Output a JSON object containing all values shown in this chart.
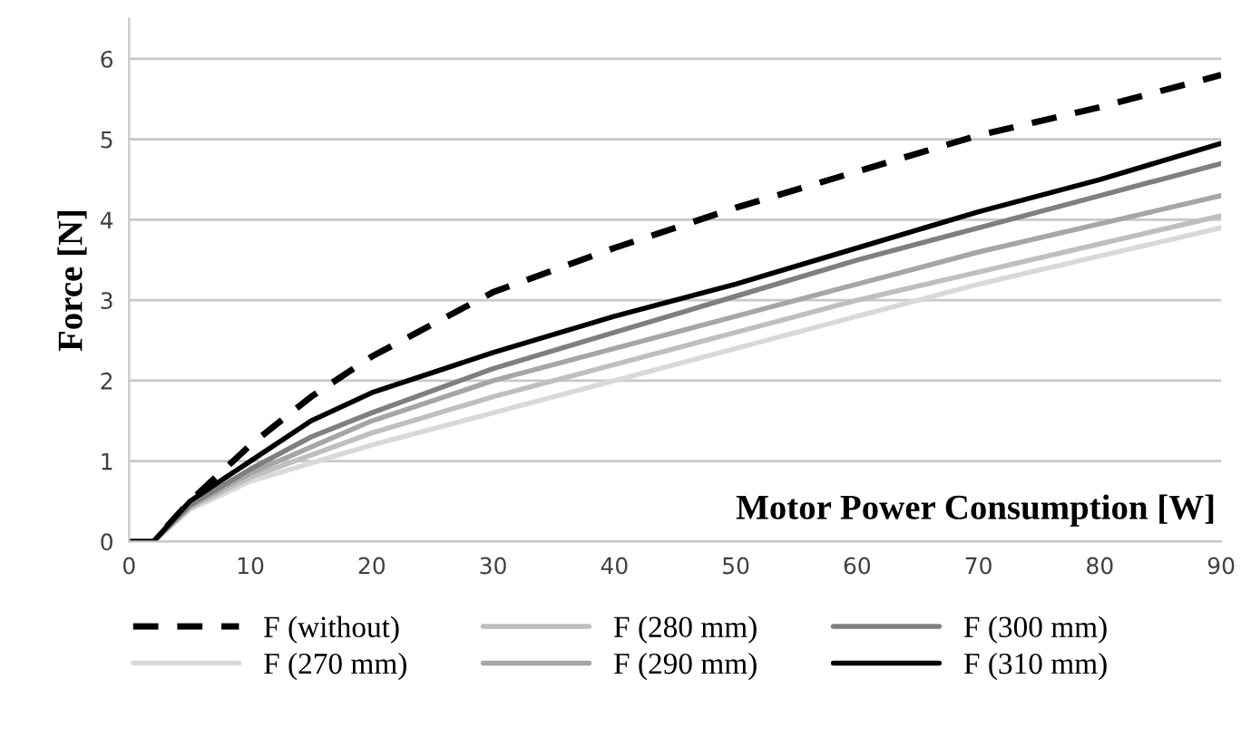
{
  "chart_data": {
    "type": "line",
    "xlabel": "Motor Power Consumption [W]",
    "ylabel": "Force [N]",
    "xlim": [
      0,
      90
    ],
    "xticks": [
      0,
      10,
      20,
      30,
      40,
      50,
      60,
      70,
      80,
      90
    ],
    "ylim": [
      0,
      6.5
    ],
    "yticks": [
      0,
      1,
      2,
      3,
      4,
      5,
      6
    ],
    "grid": "y",
    "legend": "bottom",
    "marker": "none",
    "series": [
      {
        "name": "F (without)",
        "color": "#000000",
        "line_style": "dashed",
        "x": [
          0,
          2,
          5,
          10,
          15,
          20,
          25,
          30,
          40,
          50,
          60,
          70,
          80,
          90
        ],
        "values": [
          0,
          0,
          0.5,
          1.2,
          1.8,
          2.3,
          2.7,
          3.1,
          3.65,
          4.15,
          4.6,
          5.05,
          5.4,
          5.8
        ]
      },
      {
        "name": "F (270 mm)",
        "color": "#d9d9d9",
        "line_style": "solid",
        "x": [
          0,
          2,
          5,
          10,
          20,
          30,
          40,
          50,
          60,
          70,
          80,
          90
        ],
        "values": [
          0,
          0,
          0.4,
          0.75,
          1.2,
          1.6,
          2.0,
          2.4,
          2.8,
          3.2,
          3.55,
          3.9
        ]
      },
      {
        "name": "F (280 mm)",
        "color": "#bfbfbf",
        "line_style": "solid",
        "x": [
          0,
          2,
          5,
          10,
          20,
          30,
          40,
          50,
          60,
          70,
          80,
          90
        ],
        "values": [
          0,
          0,
          0.42,
          0.8,
          1.35,
          1.8,
          2.2,
          2.6,
          3.0,
          3.35,
          3.7,
          4.05
        ]
      },
      {
        "name": "F (290 mm)",
        "color": "#a6a6a6",
        "line_style": "solid",
        "x": [
          0,
          2,
          5,
          10,
          20,
          30,
          40,
          50,
          60,
          70,
          80,
          90
        ],
        "values": [
          0,
          0,
          0.44,
          0.85,
          1.5,
          2.0,
          2.4,
          2.8,
          3.2,
          3.6,
          3.95,
          4.3
        ]
      },
      {
        "name": "F (300 mm)",
        "color": "#7f7f7f",
        "line_style": "solid",
        "x": [
          0,
          2,
          5,
          10,
          15,
          20,
          30,
          40,
          50,
          60,
          70,
          80,
          90
        ],
        "values": [
          0,
          0,
          0.45,
          0.9,
          1.3,
          1.6,
          2.15,
          2.6,
          3.05,
          3.5,
          3.9,
          4.3,
          4.7
        ]
      },
      {
        "name": "F (310 mm)",
        "color": "#000000",
        "line_style": "solid",
        "x": [
          0,
          2,
          5,
          10,
          15,
          20,
          30,
          40,
          50,
          60,
          70,
          80,
          90
        ],
        "values": [
          0,
          0,
          0.5,
          1.0,
          1.5,
          1.85,
          2.35,
          2.8,
          3.2,
          3.65,
          4.1,
          4.5,
          4.95
        ]
      }
    ]
  }
}
